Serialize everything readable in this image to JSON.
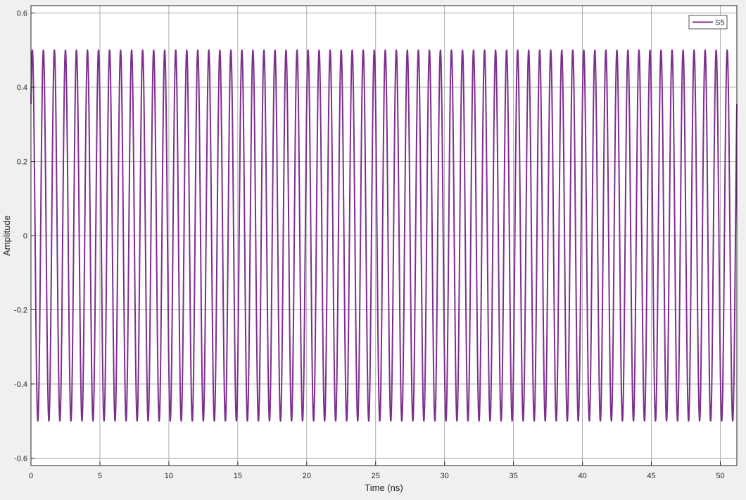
{
  "chart_data": {
    "type": "line",
    "title": "",
    "xlabel": "Time (ns)",
    "ylabel": "Amplitude",
    "xlim": [
      0,
      51.2
    ],
    "ylim": [
      -0.62,
      0.62
    ],
    "x_ticks": [
      0,
      5,
      10,
      15,
      20,
      25,
      30,
      35,
      40,
      45,
      50
    ],
    "x_tick_labels": [
      "0",
      "5",
      "10",
      "15",
      "20",
      "25",
      "30",
      "35",
      "40",
      "45",
      "50"
    ],
    "y_ticks": [
      -0.6,
      -0.4,
      -0.2,
      0,
      0.2,
      0.4,
      0.6
    ],
    "y_tick_labels": [
      "-0.6",
      "-0.4",
      "-0.2",
      "0",
      "0.2",
      "0.4",
      "0.6"
    ],
    "grid": true,
    "legend_position": "top-right",
    "series": [
      {
        "name": "S5",
        "color": "#7e2f8e",
        "waveform": "sinusoid",
        "amplitude": 0.5,
        "frequency_ghz": 1.25,
        "initial_value": 0.354,
        "x_range": [
          0,
          51.2
        ]
      }
    ]
  }
}
